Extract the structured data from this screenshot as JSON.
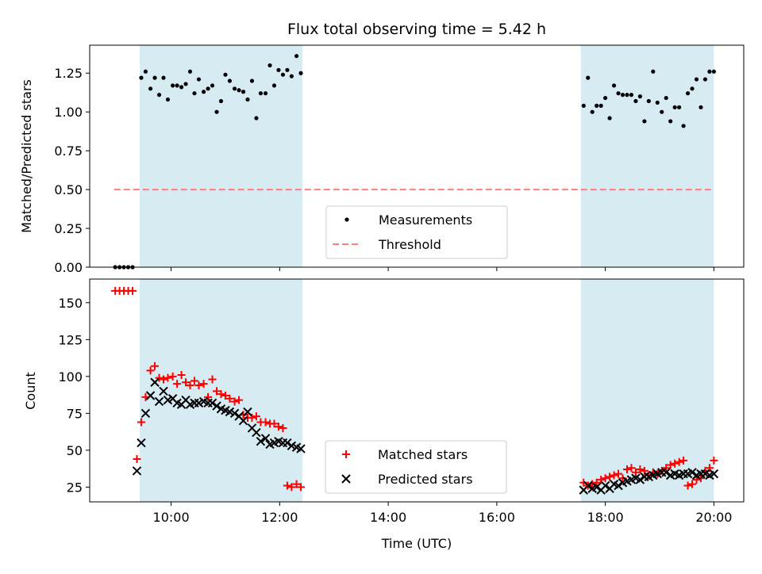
{
  "chart_data": [
    {
      "type": "scatter",
      "title": "Flux total observing time = 5.42 h",
      "xlabel": "",
      "ylabel": "Matched/Predicted stars",
      "xlim": [
        8.5,
        20.55
      ],
      "ylim": [
        0.0,
        1.43
      ],
      "yticks": [
        "0.00",
        "0.25",
        "0.50",
        "0.75",
        "1.00",
        "1.25"
      ],
      "ytick_values": [
        0.0,
        0.25,
        0.5,
        0.75,
        1.0,
        1.25
      ],
      "xtick_values": [
        10,
        12,
        14,
        16,
        18,
        20
      ],
      "shaded_intervals": [
        [
          9.42,
          12.42
        ],
        [
          17.55,
          20.0
        ]
      ],
      "shade_color": "#add8e6",
      "threshold": {
        "name": "Threshold",
        "y": 0.5,
        "x_range": [
          8.95,
          20.0
        ],
        "color": "#ff7f7f"
      },
      "series": [
        {
          "name": "Measurements",
          "color": "#000000",
          "marker": "dot",
          "x": [
            8.97,
            9.05,
            9.13,
            9.21,
            9.29,
            9.45,
            9.53,
            9.62,
            9.7,
            9.78,
            9.86,
            9.94,
            10.03,
            10.11,
            10.19,
            10.27,
            10.35,
            10.43,
            10.51,
            10.6,
            10.68,
            10.76,
            10.84,
            10.92,
            11.0,
            11.08,
            11.17,
            11.25,
            11.33,
            11.41,
            11.49,
            11.57,
            11.65,
            11.74,
            11.82,
            11.9,
            11.98,
            12.06,
            12.14,
            12.22,
            12.31,
            12.39,
            17.6,
            17.68,
            17.76,
            17.84,
            17.92,
            18.0,
            18.08,
            18.16,
            18.24,
            18.32,
            18.4,
            18.48,
            18.56,
            18.64,
            18.72,
            18.8,
            18.88,
            18.96,
            19.04,
            19.12,
            19.2,
            19.28,
            19.36,
            19.44,
            19.52,
            19.6,
            19.68,
            19.76,
            19.84,
            19.92,
            20.0
          ],
          "y": [
            0.0,
            0.0,
            0.0,
            0.0,
            0.0,
            1.22,
            1.26,
            1.15,
            1.22,
            1.11,
            1.22,
            1.08,
            1.17,
            1.17,
            1.16,
            1.18,
            1.26,
            1.12,
            1.21,
            1.13,
            1.15,
            1.17,
            1.0,
            1.07,
            1.24,
            1.2,
            1.15,
            1.14,
            1.13,
            1.08,
            1.2,
            0.96,
            1.12,
            1.12,
            1.3,
            1.17,
            1.27,
            1.24,
            1.27,
            1.23,
            1.36,
            1.25,
            1.04,
            1.22,
            1.0,
            1.04,
            1.04,
            1.09,
            0.96,
            1.17,
            1.12,
            1.11,
            1.11,
            1.11,
            1.07,
            1.1,
            0.94,
            1.07,
            1.26,
            1.06,
            1.0,
            1.09,
            0.94,
            1.03,
            1.03,
            0.91,
            1.12,
            1.15,
            1.21,
            1.03,
            1.21,
            1.26,
            1.26
          ]
        }
      ],
      "legend": {
        "location": "lower center",
        "entries": [
          "Measurements",
          "Threshold"
        ]
      }
    },
    {
      "type": "scatter",
      "title": "",
      "xlabel": "Time (UTC)",
      "ylabel": "Count",
      "xlim": [
        8.5,
        20.55
      ],
      "ylim": [
        15,
        166
      ],
      "yticks": [
        "25",
        "50",
        "75",
        "100",
        "125",
        "150"
      ],
      "ytick_values": [
        25,
        50,
        75,
        100,
        125,
        150
      ],
      "xticks": [
        "10:00",
        "12:00",
        "14:00",
        "16:00",
        "18:00",
        "20:00"
      ],
      "xtick_values": [
        10,
        12,
        14,
        16,
        18,
        20
      ],
      "shaded_intervals": [
        [
          9.42,
          12.42
        ],
        [
          17.55,
          20.0
        ]
      ],
      "shade_color": "#add8e6",
      "series": [
        {
          "name": "Matched stars",
          "color": "#ff0000",
          "marker": "plus",
          "x": [
            8.97,
            9.05,
            9.13,
            9.21,
            9.29,
            9.37,
            9.45,
            9.53,
            9.62,
            9.7,
            9.78,
            9.86,
            9.94,
            10.03,
            10.11,
            10.19,
            10.27,
            10.35,
            10.43,
            10.51,
            10.6,
            10.68,
            10.76,
            10.84,
            10.92,
            11.0,
            11.08,
            11.17,
            11.25,
            11.33,
            11.41,
            11.49,
            11.57,
            11.65,
            11.74,
            11.82,
            11.9,
            11.98,
            12.06,
            12.14,
            12.22,
            12.31,
            12.39,
            17.6,
            17.68,
            17.76,
            17.84,
            17.92,
            18.0,
            18.08,
            18.16,
            18.24,
            18.32,
            18.4,
            18.48,
            18.56,
            18.64,
            18.72,
            18.8,
            18.88,
            18.96,
            19.04,
            19.12,
            19.2,
            19.28,
            19.36,
            19.44,
            19.52,
            19.6,
            19.68,
            19.76,
            19.84,
            19.92,
            20.0
          ],
          "y": [
            158,
            158,
            158,
            158,
            158,
            44,
            69,
            86,
            104,
            107,
            99,
            98,
            99,
            100,
            95,
            101,
            96,
            94,
            97,
            94,
            95,
            86,
            98,
            90,
            88,
            87,
            85,
            83,
            84,
            74,
            72,
            72,
            73,
            69,
            69,
            68,
            68,
            66,
            65,
            26,
            25,
            27,
            25,
            28,
            26,
            27,
            28,
            30,
            31,
            32,
            33,
            34,
            31,
            37,
            38,
            35,
            37,
            36,
            33,
            35,
            34,
            36,
            38,
            40,
            41,
            42,
            43,
            26,
            27,
            30,
            31,
            36,
            38,
            43
          ],
          "y_note": ""
        },
        {
          "name": "Predicted stars",
          "color": "#000000",
          "marker": "x",
          "x": [
            9.37,
            9.45,
            9.53,
            9.62,
            9.7,
            9.78,
            9.86,
            9.94,
            10.03,
            10.11,
            10.19,
            10.27,
            10.35,
            10.43,
            10.51,
            10.6,
            10.68,
            10.76,
            10.84,
            10.92,
            11.0,
            11.08,
            11.17,
            11.25,
            11.33,
            11.41,
            11.49,
            11.57,
            11.65,
            11.74,
            11.82,
            11.9,
            11.98,
            12.06,
            12.14,
            12.22,
            12.31,
            12.39,
            17.6,
            17.68,
            17.76,
            17.84,
            17.92,
            18.0,
            18.08,
            18.16,
            18.24,
            18.32,
            18.4,
            18.48,
            18.56,
            18.64,
            18.72,
            18.8,
            18.88,
            18.96,
            19.04,
            19.12,
            19.2,
            19.28,
            19.36,
            19.44,
            19.52,
            19.6,
            19.68,
            19.76,
            19.84,
            19.92,
            20.0
          ],
          "y": [
            36,
            55,
            75,
            87,
            96,
            83,
            90,
            84,
            85,
            82,
            81,
            84,
            81,
            82,
            82,
            83,
            82,
            82,
            80,
            78,
            77,
            76,
            75,
            73,
            70,
            76,
            65,
            62,
            56,
            58,
            54,
            55,
            56,
            55,
            55,
            53,
            52,
            51,
            23,
            26,
            24,
            25,
            23,
            26,
            24,
            27,
            26,
            28,
            29,
            30,
            31,
            30,
            32,
            32,
            33,
            34,
            35,
            35,
            33,
            34,
            33,
            34,
            34,
            35,
            33,
            34,
            34,
            33,
            34
          ]
        }
      ],
      "legend": {
        "location": "lower center",
        "entries": [
          "Matched stars",
          "Predicted stars"
        ]
      }
    }
  ]
}
